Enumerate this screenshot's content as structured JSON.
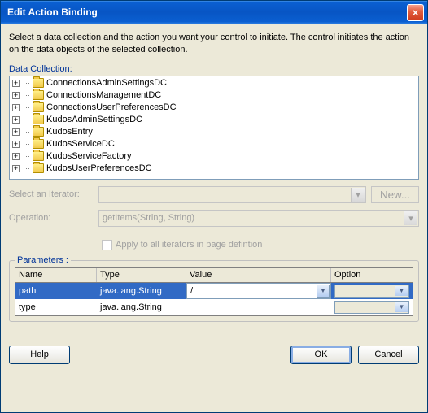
{
  "colors": {
    "titlebar_gradient": [
      "#3b8de8",
      "#0a5fd1",
      "#0855c4"
    ],
    "close_gradient": [
      "#f6a08e",
      "#e25f40",
      "#cf3b1c"
    ],
    "link_blue": "#003399",
    "disabled_text": "#a0a0a0",
    "selection_bg": "#316ac5",
    "window_bg": "#ece9d8",
    "tree_border": "#7f9db9"
  },
  "window": {
    "title": "Edit Action Binding",
    "close_glyph": "×"
  },
  "description": "Select a data collection and the action you want your control to initiate. The control initiates the action on the data objects of the selected collection.",
  "data_collection": {
    "label": "Data Collection:",
    "items": [
      "ConnectionsAdminSettingsDC",
      "ConnectionsManagementDC",
      "ConnectionsUserPreferencesDC",
      "KudosAdminSettingsDC",
      "KudosEntry",
      "KudosServiceDC",
      "KudosServiceFactory",
      "KudosUserPreferencesDC"
    ]
  },
  "iterator": {
    "label": "Select an Iterator:",
    "value": "",
    "new_button": "New..."
  },
  "operation": {
    "label": "Operation:",
    "value": "getItems(String, String)"
  },
  "apply_all": "Apply to all iterators in page defintion",
  "parameters": {
    "label": "Parameters :",
    "headers": {
      "name": "Name",
      "type": "Type",
      "value": "Value",
      "option": "Option"
    },
    "rows": [
      {
        "name": "path",
        "type": "java.lang.String",
        "value": "/",
        "option": "",
        "selected": true
      },
      {
        "name": "type",
        "type": "java.lang.String",
        "value": "",
        "option": "",
        "selected": false
      }
    ]
  },
  "buttons": {
    "help": "Help",
    "ok": "OK",
    "cancel": "Cancel"
  }
}
